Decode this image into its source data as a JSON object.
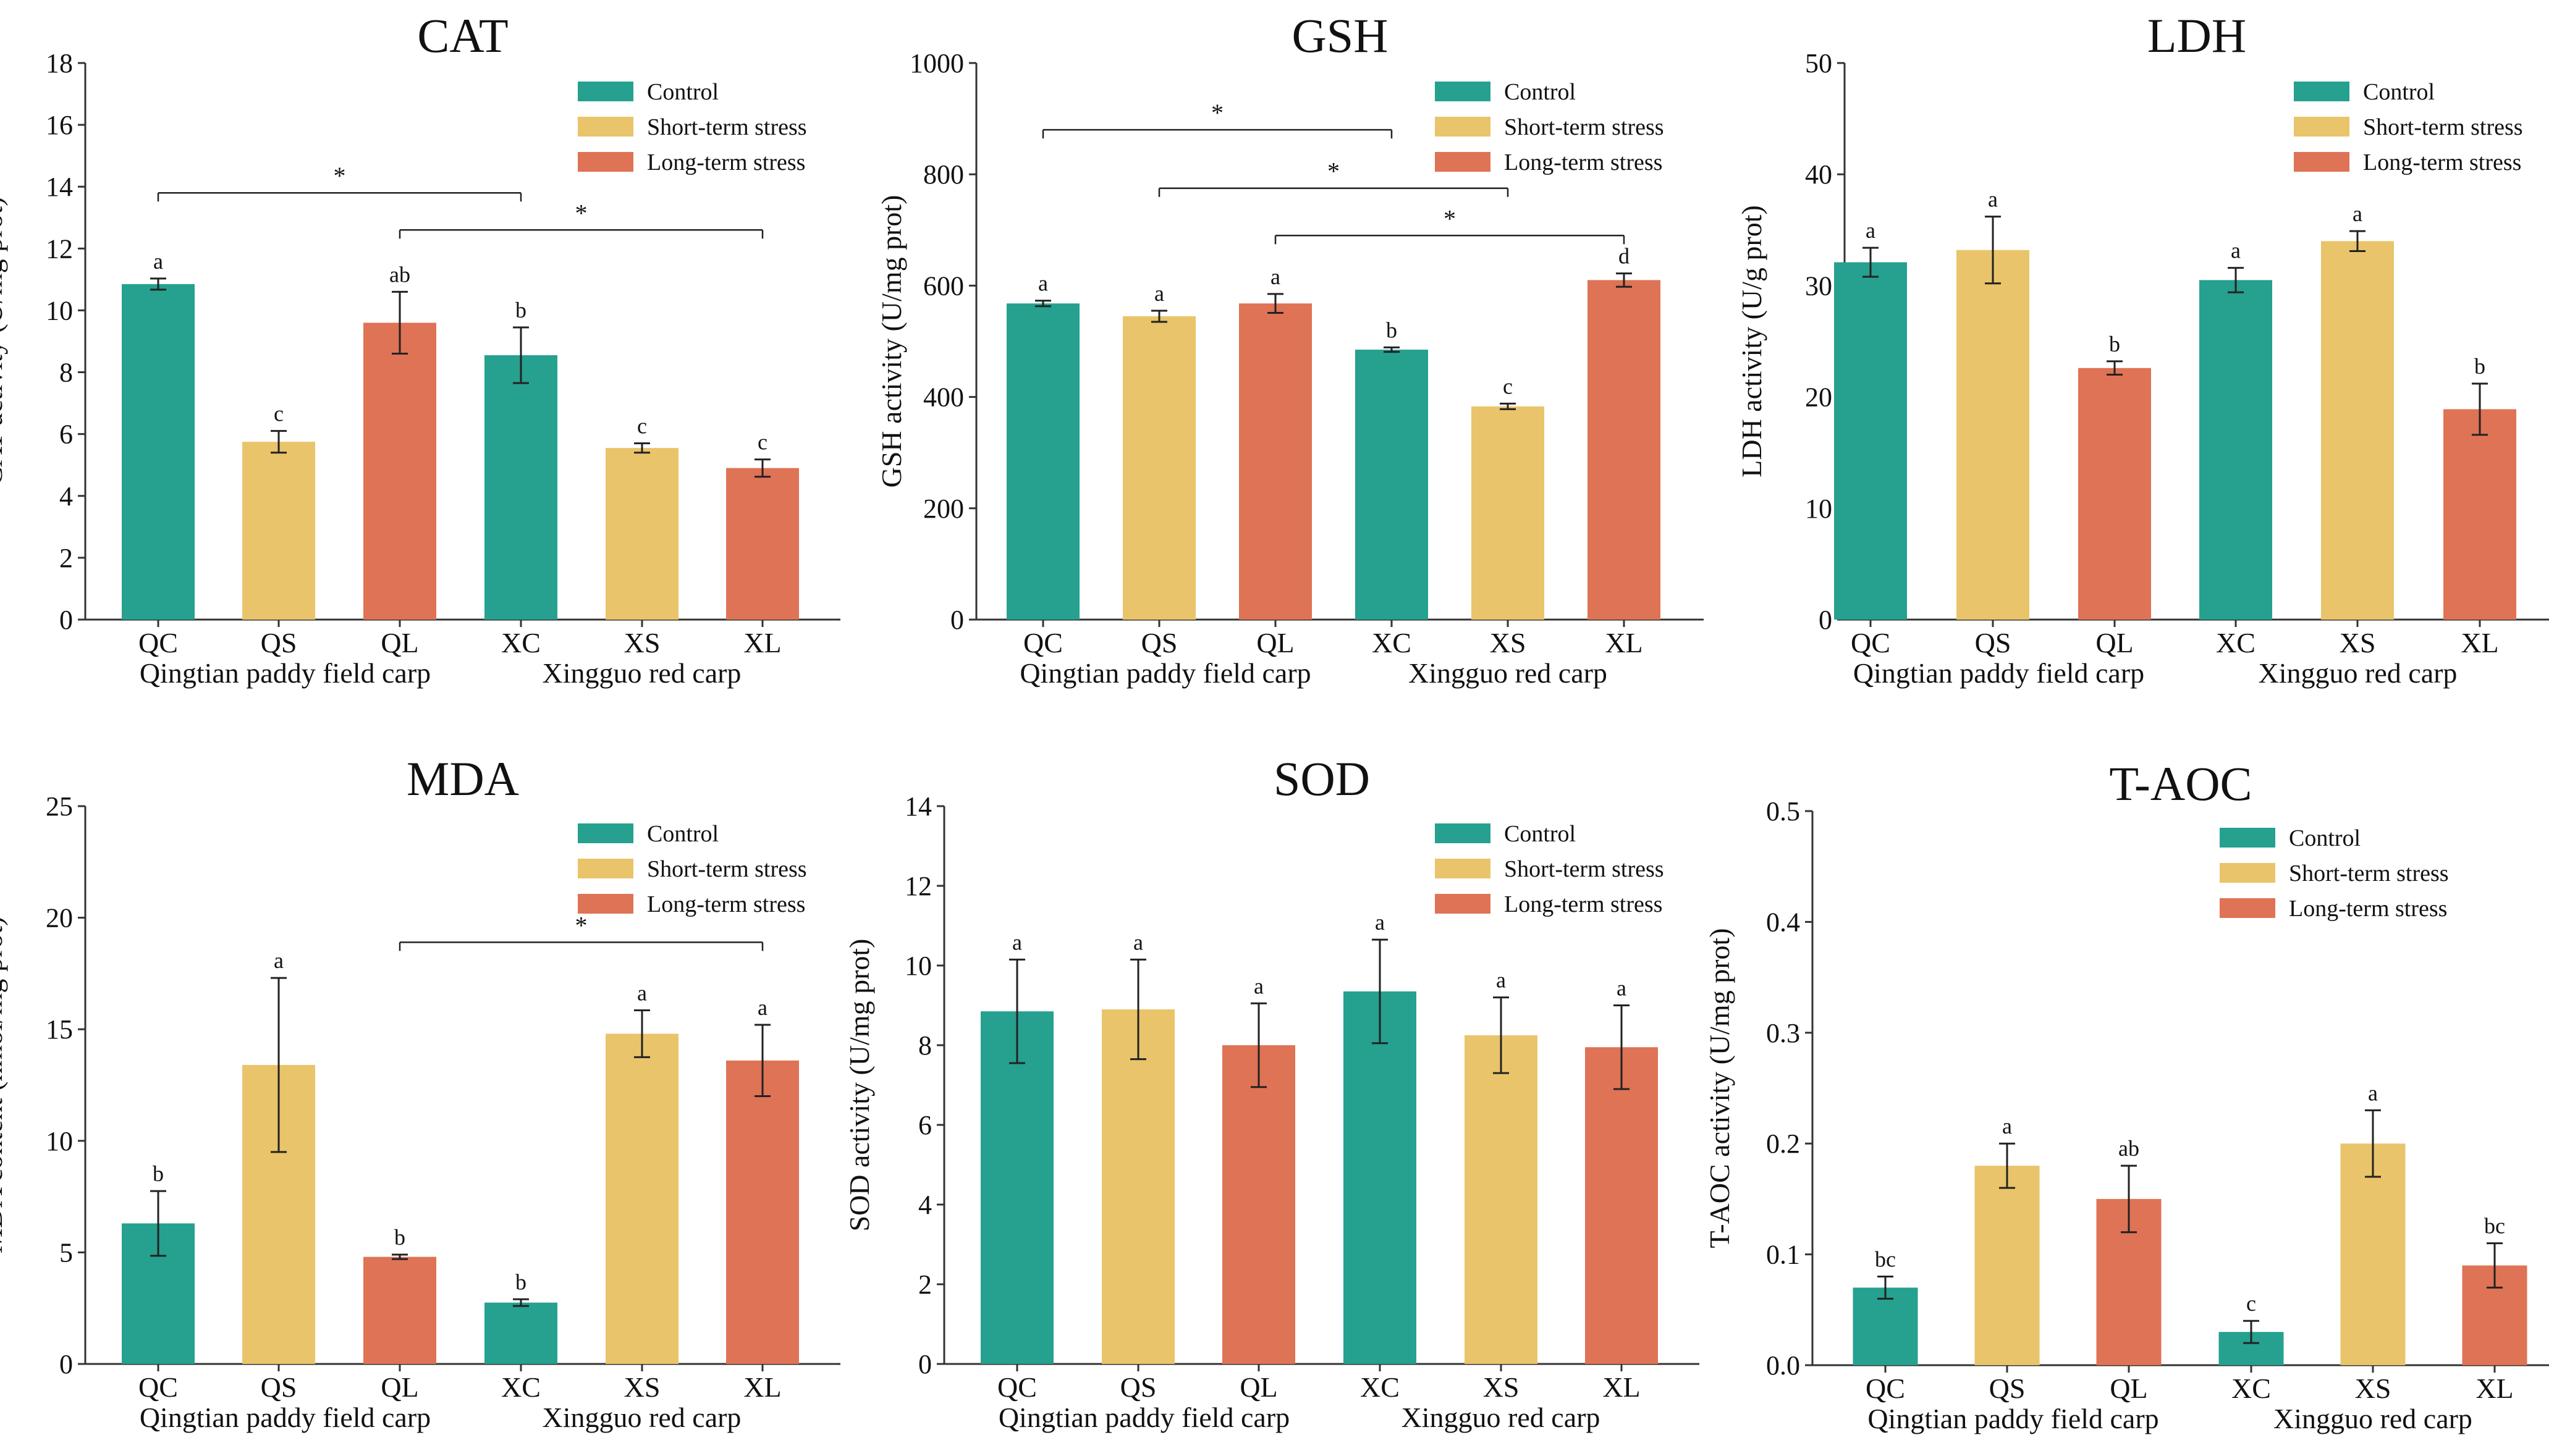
{
  "colors": {
    "control": "#26a08f",
    "short": "#e9c46a",
    "long": "#df7355",
    "axis": "#333333"
  },
  "legend_labels": [
    "Control",
    "Short-term stress",
    "Long-term stress"
  ],
  "group_labels": [
    "Qingtian paddy field carp",
    "Xingguo red carp"
  ],
  "chart_data": [
    {
      "type": "bar",
      "title": "CAT",
      "ylabel": "CAT activity (U/mg prot)",
      "ylim": [
        0,
        18
      ],
      "yticks": [
        "0",
        "2",
        "4",
        "6",
        "8",
        "10",
        "12",
        "14",
        "16",
        "18"
      ],
      "categories": [
        "QC",
        "QS",
        "QL",
        "XC",
        "XS",
        "XL"
      ],
      "values": [
        10.85,
        5.75,
        9.6,
        8.55,
        5.55,
        4.9
      ],
      "errors": [
        0.18,
        0.35,
        1.0,
        0.9,
        0.15,
        0.28
      ],
      "letters": [
        "a",
        "c",
        "ab",
        "b",
        "c",
        "c"
      ],
      "legend_position": "top-right",
      "significance": [
        {
          "from": 0,
          "to": 3,
          "level": 13.8,
          "label": "*"
        },
        {
          "from": 2,
          "to": 5,
          "level": 12.6,
          "label": "*"
        }
      ]
    },
    {
      "type": "bar",
      "title": "GSH",
      "ylabel": "GSH activity (U/mg prot)",
      "ylim": [
        0,
        1000
      ],
      "yticks": [
        "0",
        "200",
        "400",
        "600",
        "800",
        "1000"
      ],
      "categories": [
        "QC",
        "QS",
        "QL",
        "XC",
        "XS",
        "XL"
      ],
      "values": [
        568,
        545,
        568,
        485,
        383,
        610
      ],
      "errors": [
        5,
        10,
        17,
        4,
        5,
        12
      ],
      "letters": [
        "a",
        "a",
        "a",
        "b",
        "c",
        "d"
      ],
      "legend_position": "top-right",
      "significance": [
        {
          "from": 0,
          "to": 3,
          "level": 880,
          "label": "*"
        },
        {
          "from": 1,
          "to": 4,
          "level": 775,
          "label": "*"
        },
        {
          "from": 2,
          "to": 5,
          "level": 690,
          "label": "*"
        }
      ]
    },
    {
      "type": "bar",
      "title": "LDH",
      "ylabel": "LDH activity (U/g prot)",
      "ylim": [
        0,
        50
      ],
      "yticks": [
        "0",
        "10",
        "20",
        "30",
        "40",
        "50"
      ],
      "categories": [
        "QC",
        "QS",
        "QL",
        "XC",
        "XS",
        "XL"
      ],
      "values": [
        32.1,
        33.2,
        22.6,
        30.5,
        34.0,
        18.9
      ],
      "errors": [
        1.3,
        3.0,
        0.6,
        1.1,
        0.9,
        2.3
      ],
      "letters": [
        "a",
        "a",
        "b",
        "a",
        "a",
        "b"
      ],
      "legend_position": "top-right",
      "significance": []
    },
    {
      "type": "bar",
      "title": "MDA",
      "ylabel": "MDA content (nmol/mg prot)",
      "ylim": [
        0,
        25
      ],
      "yticks": [
        "0",
        "5",
        "10",
        "15",
        "20",
        "25"
      ],
      "categories": [
        "QC",
        "QS",
        "QL",
        "XC",
        "XS",
        "XL"
      ],
      "values": [
        6.3,
        13.4,
        4.8,
        2.75,
        14.8,
        13.6
      ],
      "errors": [
        1.45,
        3.9,
        0.1,
        0.15,
        1.05,
        1.6
      ],
      "letters": [
        "b",
        "a",
        "b",
        "b",
        "a",
        "a"
      ],
      "legend_position": "top-right",
      "significance": [
        {
          "from": 2,
          "to": 5,
          "level": 18.9,
          "label": "*"
        }
      ]
    },
    {
      "type": "bar",
      "title": "SOD",
      "ylabel": "SOD activity (U/mg prot)",
      "ylim": [
        0,
        14
      ],
      "yticks": [
        "0",
        "2",
        "4",
        "6",
        "8",
        "10",
        "12",
        "14"
      ],
      "categories": [
        "QC",
        "QS",
        "QL",
        "XC",
        "XS",
        "XL"
      ],
      "values": [
        8.85,
        8.9,
        8.0,
        9.35,
        8.25,
        7.95
      ],
      "errors": [
        1.3,
        1.25,
        1.05,
        1.3,
        0.95,
        1.05
      ],
      "letters": [
        "a",
        "a",
        "a",
        "a",
        "a",
        "a"
      ],
      "legend_position": "top-right",
      "significance": []
    },
    {
      "type": "bar",
      "title": "T-AOC",
      "ylabel": "T-AOC activity (U/mg prot)",
      "ylim": [
        0,
        0.5
      ],
      "yticks": [
        "0.0",
        "0.1",
        "0.2",
        "0.3",
        "0.4",
        "0.5"
      ],
      "categories": [
        "QC",
        "QS",
        "QL",
        "XC",
        "XS",
        "XL"
      ],
      "values": [
        0.07,
        0.18,
        0.15,
        0.03,
        0.2,
        0.09
      ],
      "errors": [
        0.01,
        0.02,
        0.03,
        0.01,
        0.03,
        0.02
      ],
      "letters": [
        "bc",
        "a",
        "ab",
        "c",
        "a",
        "bc"
      ],
      "legend_position": "top-right",
      "significance": []
    }
  ]
}
